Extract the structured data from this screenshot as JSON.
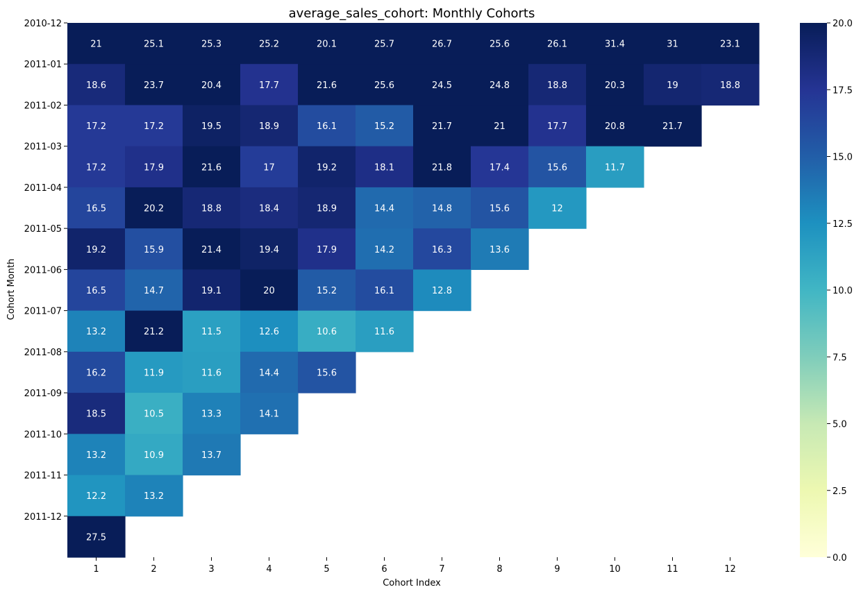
{
  "chart_data": {
    "type": "heatmap",
    "title": "average_sales_cohort: Monthly Cohorts",
    "xlabel": "Cohort Index",
    "ylabel": "Cohort Month",
    "x_categories": [
      "1",
      "2",
      "3",
      "4",
      "5",
      "6",
      "7",
      "8",
      "9",
      "10",
      "11",
      "12"
    ],
    "y_categories": [
      "2010-12",
      "2011-01",
      "2011-02",
      "2011-03",
      "2011-04",
      "2011-05",
      "2011-06",
      "2011-07",
      "2011-08",
      "2011-09",
      "2011-10",
      "2011-11",
      "2011-12"
    ],
    "values": [
      [
        21,
        25.1,
        25.3,
        25.2,
        20.1,
        25.7,
        26.7,
        25.6,
        26.1,
        31.4,
        31,
        23.1
      ],
      [
        18.6,
        23.7,
        20.4,
        17.7,
        21.6,
        25.6,
        24.5,
        24.8,
        18.8,
        20.3,
        19,
        18.8
      ],
      [
        17.2,
        17.2,
        19.5,
        18.9,
        16.1,
        15.2,
        21.7,
        21,
        17.7,
        20.8,
        21.7
      ],
      [
        17.2,
        17.9,
        21.6,
        17,
        19.2,
        18.1,
        21.8,
        17.4,
        15.6,
        11.7
      ],
      [
        16.5,
        20.2,
        18.8,
        18.4,
        18.9,
        14.4,
        14.8,
        15.6,
        12
      ],
      [
        19.2,
        15.9,
        21.4,
        19.4,
        17.9,
        14.2,
        16.3,
        13.6
      ],
      [
        16.5,
        14.7,
        19.1,
        20,
        15.2,
        16.1,
        12.8
      ],
      [
        13.2,
        21.2,
        11.5,
        12.6,
        10.6,
        11.6
      ],
      [
        16.2,
        11.9,
        11.6,
        14.4,
        15.6
      ],
      [
        18.5,
        10.5,
        13.3,
        14.1
      ],
      [
        13.2,
        10.9,
        13.7
      ],
      [
        12.2,
        13.2
      ],
      [
        27.5
      ]
    ],
    "colormap": "YlGnBu",
    "vmin": 0,
    "vmax": 20,
    "colorbar_ticks": [
      "0.0",
      "2.5",
      "5.0",
      "7.5",
      "10.0",
      "12.5",
      "15.0",
      "17.5",
      "20.0"
    ],
    "annotations": true,
    "grid": false
  }
}
